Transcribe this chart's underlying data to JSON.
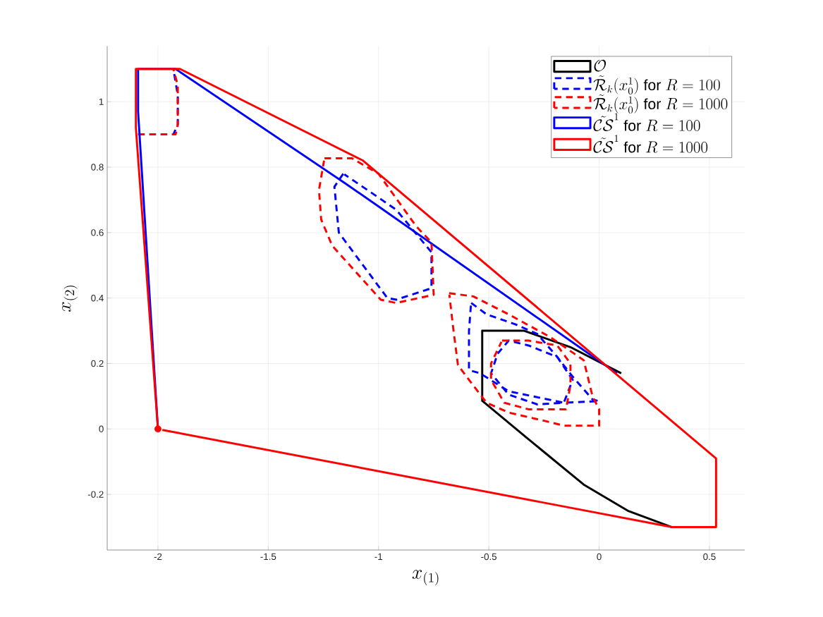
{
  "chart_data": {
    "type": "line",
    "xlabel": "x_{(1)}",
    "ylabel": "x_{(2)}",
    "xlim": [
      -2.23,
      0.66
    ],
    "ylim": [
      -0.37,
      1.17
    ],
    "xticks": [
      -2,
      -1.5,
      -1,
      -0.5,
      0,
      0.5
    ],
    "yticks": [
      -0.2,
      0,
      0.2,
      0.4,
      0.6,
      0.8,
      1
    ],
    "grid": true,
    "legend": "top right",
    "series": [
      {
        "name": "\\mathcal{O}",
        "color": "#000000",
        "line_style": "solid",
        "x": [
          0.33,
          0.13,
          -0.07,
          -0.33,
          -0.53,
          -0.53,
          -0.34,
          -0.13,
          0.1
        ],
        "values": [
          -0.3,
          -0.25,
          -0.17,
          -0.026,
          0.086,
          0.3,
          0.3,
          0.25,
          0.17
        ]
      },
      {
        "name": "\\tilde{\\mathcal{R}}_k(x_0^1)\\ \\mathrm{for}\\ R=100",
        "color": "#0000ff",
        "line_style": "dashed",
        "x": [
          -2.09,
          -1.93,
          -1.91,
          -1.91,
          -1.93
        ],
        "values": [
          0.9,
          0.9,
          0.93,
          1.02,
          1.1
        ]
      },
      {
        "name": "\\tilde{\\mathcal{R}}_k(x_0^1)\\ \\mathrm{for}\\ R=1000",
        "color": "#ff0000",
        "line_style": "dashed",
        "x": [
          -2.09,
          -1.92,
          -1.91,
          -1.91,
          -1.93
        ],
        "values": [
          0.9,
          0.9,
          0.93,
          1.05,
          1.1
        ]
      },
      {
        "name": "\\tilde{\\mathcal{C}\\mathcal{S}}^1\\ \\mathrm{for}\\ R=100",
        "color": "#0000ff",
        "line_style": "solid",
        "x": [
          -2,
          -2.09,
          -2.09,
          -1.92,
          -1.15,
          -1.0,
          0.08
        ],
        "values": [
          0,
          0.97,
          1.1,
          1.1,
          0.75,
          0.68,
          0.17
        ]
      },
      {
        "name": "\\tilde{\\mathcal{C}\\mathcal{S}}^1\\ \\mathrm{for}\\ R=1000",
        "color": "#ff0000",
        "line_style": "solid",
        "x": [
          -2,
          -2.1,
          -2.1,
          -1.9,
          -1.07,
          -1.0,
          0.53,
          0.53,
          0.33,
          -1.98
        ],
        "values": [
          0,
          0.92,
          1.1,
          1.1,
          0.82,
          0.78,
          -0.09,
          -0.3,
          -0.3,
          -0.003
        ]
      },
      {
        "color": "#0000ff",
        "line_style": "dashed",
        "x": [
          -1.16,
          -1.2,
          -1.18,
          -0.96,
          -0.92,
          -0.76,
          -0.76,
          -0.92,
          -1.05,
          -1.155
        ],
        "values": [
          0.78,
          0.74,
          0.6,
          0.4,
          0.395,
          0.43,
          0.54,
          0.67,
          0.73,
          0.778
        ]
      },
      {
        "color": "#0000ff",
        "line_style": "dashed",
        "x": [
          -0.58,
          -0.51,
          -0.38,
          -0.28,
          -0.19,
          -0.12,
          -0.03,
          0.0,
          -0.16,
          -0.41,
          -0.54,
          -0.59,
          -0.59,
          -0.581
        ],
        "values": [
          0.385,
          0.35,
          0.32,
          0.29,
          0.22,
          0.16,
          0.09,
          0.085,
          0.08,
          0.115,
          0.17,
          0.18,
          0.3,
          0.38
        ]
      },
      {
        "color": "#0000ff",
        "line_style": "dashed",
        "x": [
          -0.46,
          -0.41,
          -0.32,
          -0.19,
          -0.12,
          -0.16,
          -0.28,
          -0.41,
          -0.49,
          -0.462
        ],
        "values": [
          0.23,
          0.27,
          0.255,
          0.22,
          0.15,
          0.08,
          0.075,
          0.105,
          0.17,
          0.226
        ]
      },
      {
        "color": "#ff0000",
        "line_style": "dashed",
        "x": [
          -1.245,
          -1.12,
          -1.0,
          -0.83,
          -0.76,
          -0.75,
          -0.92,
          -0.99,
          -1.21,
          -1.26,
          -1.27,
          -1.247
        ],
        "values": [
          0.827,
          0.827,
          0.78,
          0.62,
          0.57,
          0.41,
          0.385,
          0.395,
          0.56,
          0.64,
          0.73,
          0.82
        ]
      },
      {
        "color": "#ff0000",
        "line_style": "dashed",
        "x": [
          -0.68,
          -0.57,
          -0.41,
          -0.22,
          -0.07,
          -0.03,
          0.0,
          0.0,
          -0.16,
          -0.25,
          -0.41,
          -0.51,
          -0.59,
          -0.64,
          -0.66,
          -0.679
        ],
        "values": [
          0.415,
          0.405,
          0.35,
          0.28,
          0.21,
          0.1,
          0.06,
          0.01,
          0.01,
          0.025,
          0.05,
          0.08,
          0.15,
          0.195,
          0.3,
          0.41
        ]
      },
      {
        "color": "#ff0000",
        "line_style": "dashed",
        "x": [
          -0.44,
          -0.32,
          -0.19,
          -0.13,
          -0.13,
          -0.15,
          -0.32,
          -0.43,
          -0.49,
          -0.49,
          -0.443
        ],
        "values": [
          0.27,
          0.27,
          0.255,
          0.2,
          0.135,
          0.06,
          0.06,
          0.08,
          0.15,
          0.2,
          0.266
        ]
      },
      {
        "type": "scatter",
        "marker": "circle",
        "color": "#ff0000",
        "x": [
          -2
        ],
        "values": [
          0
        ]
      }
    ]
  }
}
